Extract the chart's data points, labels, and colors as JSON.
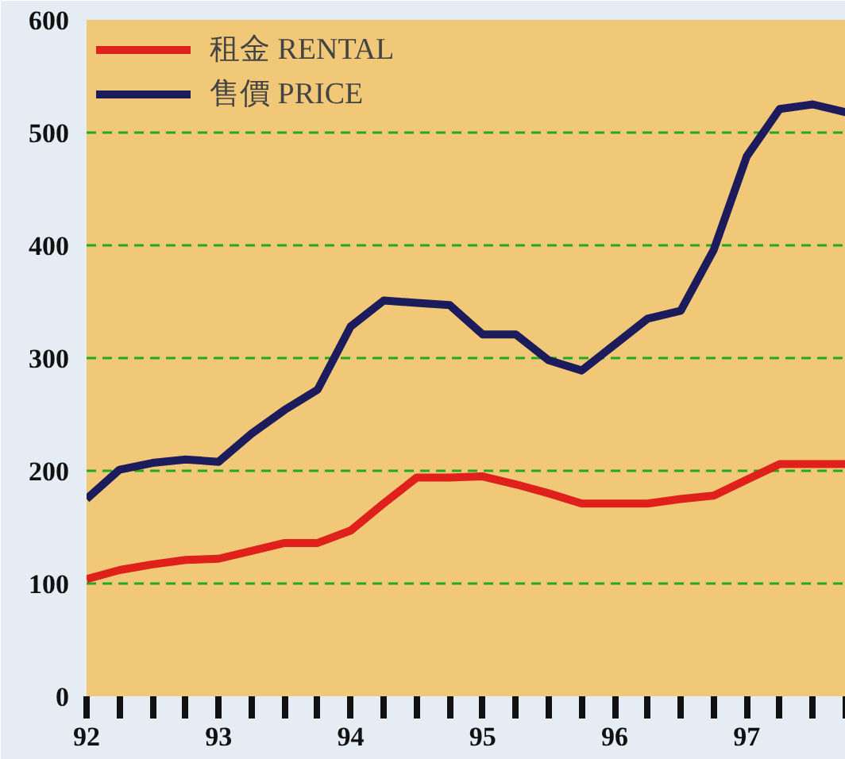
{
  "chart_data": {
    "type": "line",
    "xlim": [
      92,
      97.75
    ],
    "ylim": [
      0,
      600
    ],
    "yticks": [
      0,
      100,
      200,
      300,
      400,
      500,
      600
    ],
    "xticks": [
      92,
      {
        "value": 92.25,
        "label": null
      },
      {
        "value": 92.5,
        "label": null
      },
      {
        "value": 92.75,
        "label": null
      },
      93,
      {
        "value": 93.25,
        "label": null
      },
      {
        "value": 93.5,
        "label": null
      },
      {
        "value": 93.75,
        "label": null
      },
      94,
      {
        "value": 94.25,
        "label": null
      },
      {
        "value": 94.5,
        "label": null
      },
      {
        "value": 94.75,
        "label": null
      },
      95,
      {
        "value": 95.25,
        "label": null
      },
      {
        "value": 95.5,
        "label": null
      },
      {
        "value": 95.75,
        "label": null
      },
      96,
      {
        "value": 96.25,
        "label": null
      },
      {
        "value": 96.5,
        "label": null
      },
      {
        "value": 96.75,
        "label": null
      },
      97,
      {
        "value": 97.25,
        "label": null
      },
      {
        "value": 97.5,
        "label": null
      },
      {
        "value": 97.75,
        "label": null
      }
    ],
    "x": [
      92,
      92.25,
      92.5,
      92.75,
      93,
      93.25,
      93.5,
      93.75,
      94,
      94.25,
      94.5,
      94.75,
      95,
      95.25,
      95.5,
      95.75,
      96,
      96.25,
      96.5,
      96.75,
      97,
      97.25,
      97.5,
      97.75
    ],
    "series": [
      {
        "name": "租金 RENTAL",
        "color": "#e0201a",
        "values": [
          104,
          112,
          117,
          121,
          122,
          129,
          136,
          136,
          147,
          171,
          194,
          194,
          195,
          188,
          180,
          171,
          171,
          171,
          175,
          178,
          192,
          206,
          206,
          206
        ]
      },
      {
        "name": "售價 PRICE",
        "color": "#1c1c5c",
        "values": [
          175,
          201,
          207,
          210,
          208,
          233,
          254,
          272,
          328,
          351,
          349,
          347,
          321,
          321,
          298,
          289,
          312,
          335,
          342,
          396,
          479,
          521,
          525,
          518
        ]
      }
    ],
    "grid": "y",
    "legend": "top left",
    "marker": "none",
    "line_style": "solid"
  }
}
